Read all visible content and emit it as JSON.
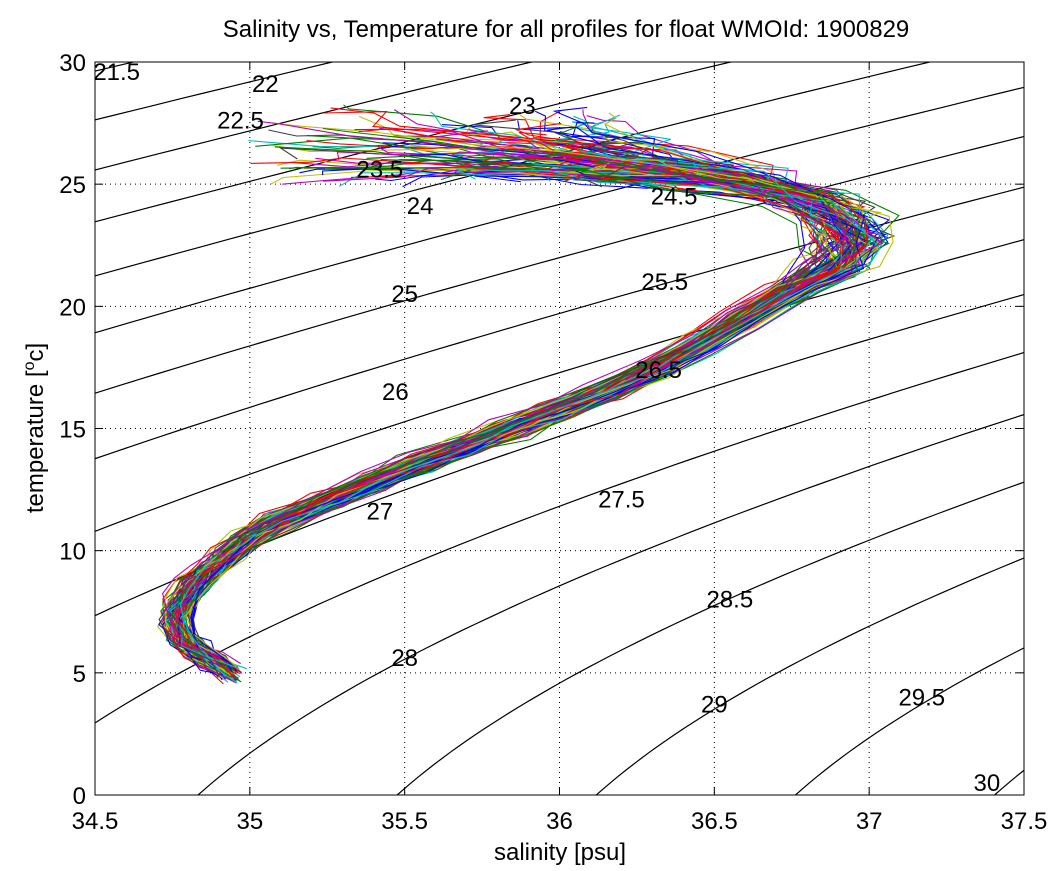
{
  "chart_data": {
    "type": "line",
    "title": "Salinity vs, Temperature for all profiles for float WMOId: 1900829",
    "xlabel": "salinity [psu]",
    "ylabel_main": "temperature [",
    "ylabel_sup": "o",
    "ylabel_end": "c]",
    "xlim": [
      34.5,
      37.5
    ],
    "ylim": [
      0,
      30
    ],
    "xticks": [
      "34.5",
      "35",
      "35.5",
      "36",
      "36.5",
      "37",
      "37.5"
    ],
    "yticks": [
      "0",
      "5",
      "10",
      "15",
      "20",
      "25",
      "30"
    ],
    "xtick_values": [
      34.5,
      35,
      35.5,
      36,
      36.5,
      37,
      37.5
    ],
    "ytick_values": [
      0,
      5,
      10,
      15,
      20,
      25,
      30
    ],
    "grid": "dotted",
    "profile_colors": [
      "#0000ff",
      "#008000",
      "#ff0000",
      "#00bfbf",
      "#bf00bf",
      "#bfbf00",
      "#404040"
    ],
    "mean_profile": {
      "salinity": [
        34.94,
        34.88,
        34.82,
        34.78,
        34.76,
        34.78,
        34.82,
        34.87,
        34.93,
        35.0,
        35.1,
        35.25,
        35.4,
        35.55,
        35.7,
        35.85,
        36.0,
        36.15,
        36.3,
        36.45,
        36.6,
        36.75,
        36.85,
        36.9,
        36.85,
        36.75,
        36.6,
        36.4,
        36.2,
        36.0,
        35.7,
        35.4
      ],
      "temperature": [
        5.0,
        5.5,
        6.0,
        6.5,
        7.2,
        7.8,
        8.5,
        9.2,
        9.8,
        10.5,
        11.2,
        12.0,
        12.8,
        13.6,
        14.3,
        15.0,
        15.7,
        16.5,
        17.4,
        18.4,
        19.5,
        20.6,
        21.6,
        22.6,
        23.6,
        24.4,
        25.0,
        25.4,
        25.8,
        26.2,
        26.6,
        27.0
      ]
    },
    "isopycnals": [
      {
        "label": "21.5",
        "sigma": 21.5,
        "label_s": 34.57,
        "label_t": 29.6
      },
      {
        "label": "22",
        "sigma": 22.0,
        "label_s": 35.05,
        "label_t": 29.1
      },
      {
        "label": "22.5",
        "sigma": 22.5,
        "label_s": 34.97,
        "label_t": 27.6
      },
      {
        "label": "23",
        "sigma": 23.0,
        "label_s": 35.88,
        "label_t": 28.2
      },
      {
        "label": "23.5",
        "sigma": 23.5,
        "label_s": 35.42,
        "label_t": 25.6
      },
      {
        "label": "24",
        "sigma": 24.0,
        "label_s": 35.55,
        "label_t": 24.1
      },
      {
        "label": "24.5",
        "sigma": 24.5,
        "label_s": 36.37,
        "label_t": 24.5
      },
      {
        "label": "25",
        "sigma": 25.0,
        "label_s": 35.5,
        "label_t": 20.5
      },
      {
        "label": "25.5",
        "sigma": 25.5,
        "label_s": 36.34,
        "label_t": 21.0
      },
      {
        "label": "26",
        "sigma": 26.0,
        "label_s": 35.47,
        "label_t": 16.5
      },
      {
        "label": "26.5",
        "sigma": 26.5,
        "label_s": 36.32,
        "label_t": 17.4
      },
      {
        "label": "27",
        "sigma": 27.0,
        "label_s": 35.42,
        "label_t": 11.6
      },
      {
        "label": "27.5",
        "sigma": 27.5,
        "label_s": 36.2,
        "label_t": 12.1
      },
      {
        "label": "28",
        "sigma": 28.0,
        "label_s": 35.5,
        "label_t": 5.6
      },
      {
        "label": "28.5",
        "sigma": 28.5,
        "label_s": 36.55,
        "label_t": 8.0
      },
      {
        "label": "29",
        "sigma": 29.0,
        "label_s": 36.5,
        "label_t": 3.7
      },
      {
        "label": "29.5",
        "sigma": 29.5,
        "label_s": 37.17,
        "label_t": 4.0
      },
      {
        "label": "30",
        "sigma": 30.0,
        "label_s": 37.38,
        "label_t": 0.5
      }
    ]
  }
}
